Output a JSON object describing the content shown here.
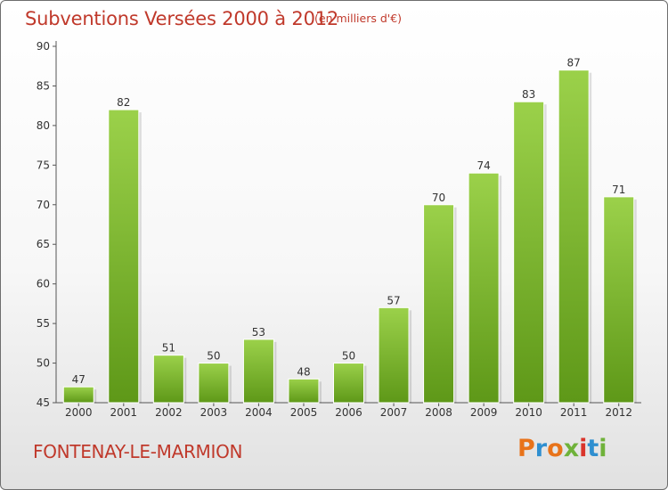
{
  "header": {
    "title": "Subventions Versées 2000 à 2012",
    "unit": "(en milliers d'€)"
  },
  "footer": {
    "place": "FONTENAY-LE-MARMION",
    "logo_letters": [
      "P",
      "r",
      "o",
      "x",
      "i",
      "t",
      "i"
    ],
    "logo_colors": [
      "#e8731a",
      "#2f8fd0",
      "#e8731a",
      "#6fb23a",
      "#d9342b",
      "#2f8fd0",
      "#6fb23a"
    ]
  },
  "colors": {
    "bar_light": "#9bd14a",
    "bar_dark": "#5e9818",
    "text": "#c0392b"
  },
  "chart_data": {
    "type": "bar",
    "categories": [
      "2000",
      "2001",
      "2002",
      "2003",
      "2004",
      "2005",
      "2006",
      "2007",
      "2008",
      "2009",
      "2010",
      "2011",
      "2012"
    ],
    "values": [
      47,
      82,
      51,
      50,
      53,
      48,
      50,
      57,
      70,
      74,
      83,
      87,
      71
    ],
    "ylim": [
      45,
      90
    ],
    "yticks": [
      45,
      50,
      55,
      60,
      65,
      70,
      75,
      80,
      85,
      90
    ],
    "grid": false,
    "title": "Subventions Versées 2000 à 2012",
    "xlabel": "",
    "ylabel": ""
  }
}
